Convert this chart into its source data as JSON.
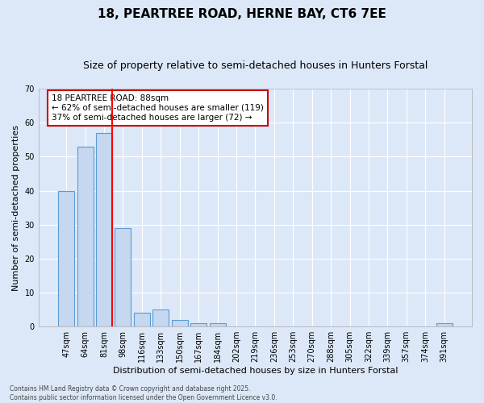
{
  "title": "18, PEARTREE ROAD, HERNE BAY, CT6 7EE",
  "subtitle": "Size of property relative to semi-detached houses in Hunters Forstal",
  "xlabel": "Distribution of semi-detached houses by size in Hunters Forstal",
  "ylabel": "Number of semi-detached properties",
  "categories": [
    "47sqm",
    "64sqm",
    "81sqm",
    "98sqm",
    "116sqm",
    "133sqm",
    "150sqm",
    "167sqm",
    "184sqm",
    "202sqm",
    "219sqm",
    "236sqm",
    "253sqm",
    "270sqm",
    "288sqm",
    "305sqm",
    "322sqm",
    "339sqm",
    "357sqm",
    "374sqm",
    "391sqm"
  ],
  "values": [
    40,
    53,
    57,
    29,
    4,
    5,
    2,
    1,
    1,
    0,
    0,
    0,
    0,
    0,
    0,
    0,
    0,
    0,
    0,
    0,
    1
  ],
  "bar_color": "#c5d8f0",
  "bar_edge_color": "#5b9bd5",
  "red_line_index": 2,
  "ylim": [
    0,
    70
  ],
  "yticks": [
    0,
    10,
    20,
    30,
    40,
    50,
    60,
    70
  ],
  "annotation_title": "18 PEARTREE ROAD: 88sqm",
  "annotation_line1": "← 62% of semi-detached houses are smaller (119)",
  "annotation_line2": "37% of semi-detached houses are larger (72) →",
  "annotation_box_color": "#ffffff",
  "annotation_box_edge_color": "#cc0000",
  "footer_line1": "Contains HM Land Registry data © Crown copyright and database right 2025.",
  "footer_line2": "Contains public sector information licensed under the Open Government Licence v3.0.",
  "background_color": "#dce8f8",
  "grid_color": "#ffffff",
  "title_fontsize": 11,
  "subtitle_fontsize": 9,
  "tick_fontsize": 7,
  "ylabel_fontsize": 8,
  "xlabel_fontsize": 8,
  "annotation_fontsize": 7.5,
  "footer_fontsize": 5.5
}
